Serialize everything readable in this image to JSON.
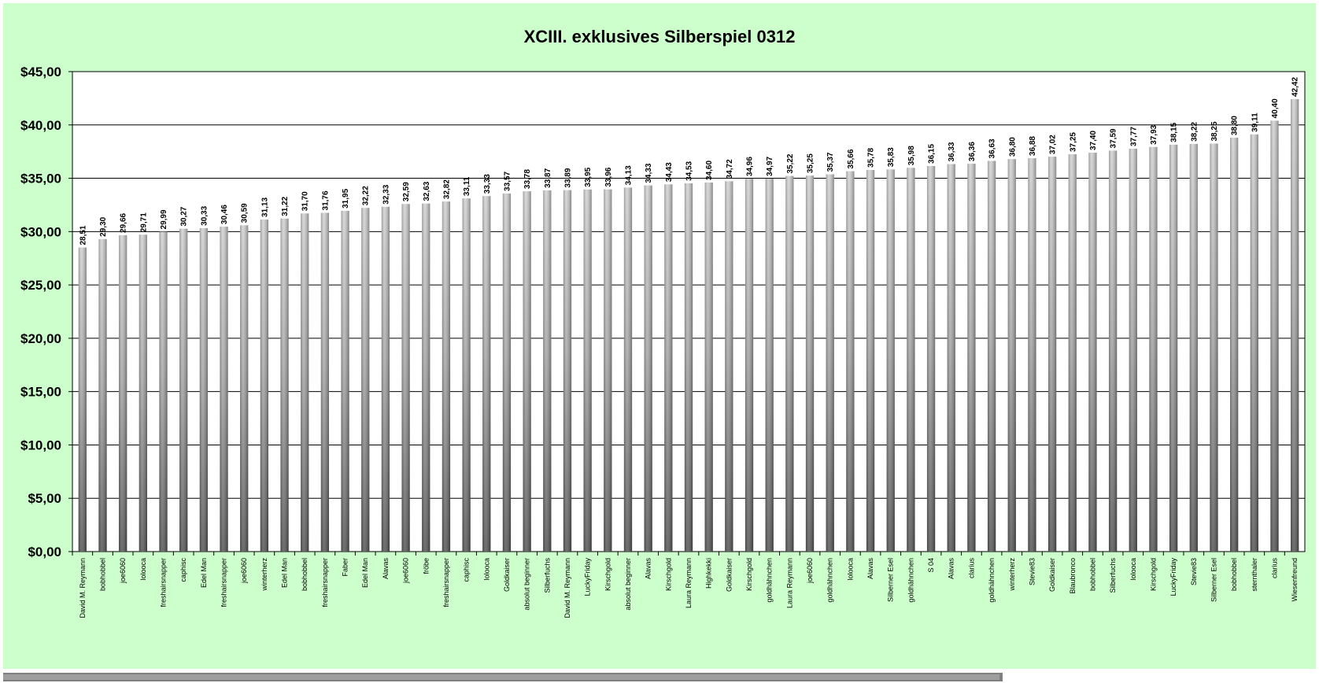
{
  "chart_data": {
    "type": "bar",
    "title": "XCIII. exklusives Silberspiel 0312",
    "xlabel": "",
    "ylabel": "",
    "ylim": [
      0,
      45
    ],
    "yticks": [
      0,
      5,
      10,
      15,
      20,
      25,
      30,
      35,
      40,
      45
    ],
    "ytick_labels": [
      "$0,00",
      "$5,00",
      "$10,00",
      "$15,00",
      "$20,00",
      "$25,00",
      "$30,00",
      "$35,00",
      "$40,00",
      "$45,00"
    ],
    "grid": true,
    "legend": "none",
    "colors": {
      "background": "#ccffcc",
      "plot_background": "#ffffff",
      "bar_light": "#d2d2d2",
      "bar_dark": "#555555",
      "gridline": "#000000"
    },
    "categories": [
      "David M. Reymann",
      "bobhobbel",
      "joe6060",
      "lolooca",
      "freshairsnapper",
      "caphisc",
      "Edel Man",
      "freshairsnapper",
      "joe6060",
      "winterherz",
      "Edel Man",
      "bobhobbel",
      "freshairsnapper",
      "Faber",
      "Edel Man",
      "Alavas",
      "joe6060",
      "fröbe",
      "freshairsnapper",
      "caphisc",
      "lolooca",
      "Goldkaiser",
      "absolut beginner",
      "Silberfuchs",
      "David M. Reymann",
      "LuckyFriday",
      "Kirschgold",
      "absolut beginner",
      "Alavas",
      "Kirschgold",
      "Laura Reymann",
      "Highkekki",
      "Goldkaiser",
      "Kirschgold",
      "goldhähnchen",
      "Laura Reymann",
      "joe6060",
      "goldhähnchen",
      "lolooca",
      "Alavas",
      "Silberner Esel",
      "goldhähnchen",
      "S 04",
      "Alavas",
      "clarius",
      "goldhähnchen",
      "winterherz",
      "Stevie83",
      "Goldkaiser",
      "Blaubronco",
      "bobhobbel",
      "Silberfuchs",
      "lolooca",
      "Kirschgold",
      "LuckyFriday",
      "Stevie83",
      "Silberner Esel",
      "bobhobbel",
      "sternthaler",
      "clarius",
      "Wiesenfreund"
    ],
    "value_labels": [
      "28,51",
      "29,30",
      "29,66",
      "29,71",
      "29,99",
      "30,27",
      "30,33",
      "30,46",
      "30,59",
      "31,13",
      "31,22",
      "31,70",
      "31,76",
      "31,95",
      "32,22",
      "32,33",
      "32,59",
      "32,63",
      "32,82",
      "33,11",
      "33,33",
      "33,57",
      "33,78",
      "33,87",
      "33,89",
      "33,95",
      "33,96",
      "34,13",
      "34,33",
      "34,43",
      "34,53",
      "34,60",
      "34,72",
      "34,96",
      "34,97",
      "35,22",
      "35,25",
      "35,37",
      "35,66",
      "35,78",
      "35,83",
      "35,98",
      "36,15",
      "36,33",
      "36,36",
      "36,63",
      "36,80",
      "36,88",
      "37,02",
      "37,25",
      "37,40",
      "37,59",
      "37,77",
      "37,93",
      "38,15",
      "38,22",
      "38,25",
      "38,80",
      "39,11",
      "40,40",
      "42,42"
    ],
    "values": [
      28.51,
      29.3,
      29.66,
      29.71,
      29.99,
      30.27,
      30.33,
      30.46,
      30.59,
      31.13,
      31.22,
      31.7,
      31.76,
      31.95,
      32.22,
      32.33,
      32.59,
      32.63,
      32.82,
      33.11,
      33.33,
      33.57,
      33.78,
      33.87,
      33.89,
      33.95,
      33.96,
      34.13,
      34.33,
      34.43,
      34.53,
      34.6,
      34.72,
      34.96,
      34.97,
      35.22,
      35.25,
      35.37,
      35.66,
      35.78,
      35.83,
      35.98,
      36.15,
      36.33,
      36.36,
      36.63,
      36.8,
      36.88,
      37.02,
      37.25,
      37.4,
      37.59,
      37.77,
      37.93,
      38.15,
      38.22,
      38.25,
      38.8,
      39.11,
      40.4,
      42.42
    ]
  }
}
